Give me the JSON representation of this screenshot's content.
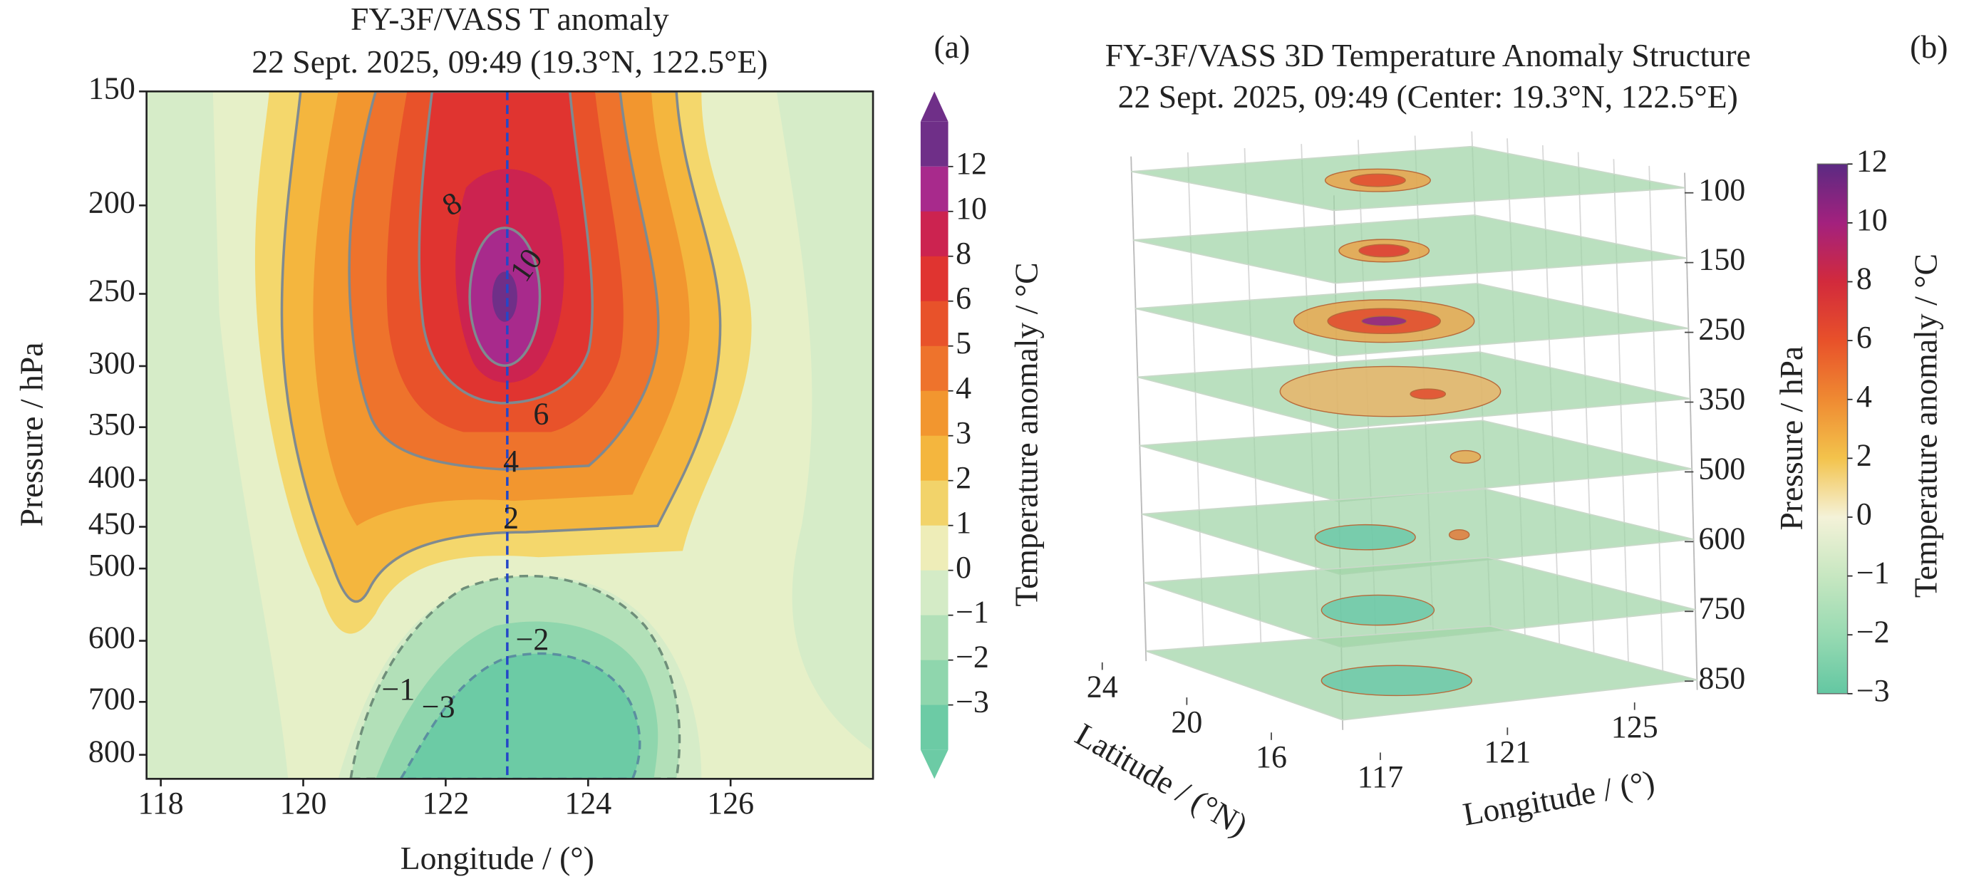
{
  "chart_data": [
    {
      "type": "contour",
      "panel_label": "(a)",
      "title": "FY-3F/VASS T anomaly",
      "subtitle": "22 Sept. 2025, 09:49 (19.3°N, 122.5°E)",
      "xlabel": "Longitude / (°)",
      "ylabel": "Pressure / hPa",
      "xlim": [
        117.8,
        128
      ],
      "xticks": [
        118,
        120,
        122,
        124,
        126
      ],
      "yscale": "log",
      "ylim": [
        850,
        150
      ],
      "yticks": [
        150,
        200,
        250,
        300,
        350,
        400,
        450,
        500,
        600,
        700,
        800
      ],
      "contour_labels": [
        8,
        10,
        6,
        4,
        2,
        {
          "value": -2,
          "label": "−2"
        },
        {
          "value": -1,
          "label": "−1"
        },
        {
          "value": -3,
          "label": "−3"
        }
      ],
      "colorbar": {
        "label": "Temperature anomaly / °C",
        "ticks": [
          12,
          10,
          8,
          6,
          5,
          4,
          3,
          2,
          1,
          0,
          {
            "value": -1,
            "label": "−1"
          },
          {
            "value": -2,
            "label": "−2"
          },
          {
            "value": -3,
            "label": "−3"
          }
        ],
        "colors": [
          "#6f2f88",
          "#a82a8c",
          "#cc2350",
          "#e03430",
          "#e8522a",
          "#ee732c",
          "#f2962f",
          "#f4b63e",
          "#f2d36a",
          "#eeedb8",
          "#d4ebc6",
          "#b2e0b8",
          "#8fd6ad",
          "#6ccba5"
        ]
      }
    },
    {
      "type": "layers3d",
      "panel_label": "(b)",
      "title": "FY-3F/VASS 3D Temperature Anomaly Structure",
      "subtitle": "22 Sept. 2025, 09:49 (Center: 19.3°N, 122.5°E)",
      "xlabel": "Longitude / (°)",
      "ylabel": "Latitude / (°N)",
      "zlabel": "Pressure / hPa",
      "xticks": [
        117,
        121,
        125
      ],
      "yticks": [
        24,
        20,
        16
      ],
      "zticks": [
        100,
        150,
        250,
        350,
        500,
        600,
        750,
        850
      ],
      "colorbar": {
        "label": "Temperature anomaly / °C",
        "ticks": [
          12,
          10,
          8,
          6,
          4,
          2,
          0,
          {
            "value": -1,
            "label": "−1"
          },
          {
            "value": -2,
            "label": "−2"
          },
          {
            "value": -3,
            "label": "−3"
          }
        ],
        "colors": [
          "#5b2a82",
          "#a3217e",
          "#d22a3c",
          "#e8512a",
          "#ef8a32",
          "#f3c34c",
          "#f4f2d8",
          "#c7e7c1",
          "#98dab2",
          "#63c7a2"
        ]
      }
    }
  ]
}
